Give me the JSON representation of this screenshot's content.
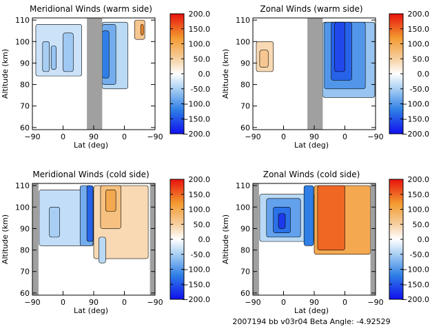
{
  "footer": "2007194 bb v03r04   Beta Angle: -4.92529",
  "gap_color": "#a0a0a0",
  "colorbar": {
    "ticks": [
      200.0,
      150.0,
      100.0,
      50.0,
      0.0,
      -50.0,
      -100.0,
      -150.0,
      -200.0
    ],
    "tick_labels": [
      "200.0",
      "150.0",
      "100.0",
      "50.0",
      "0.0",
      "-50.0",
      "−100.0",
      "−150.0",
      "−200.0"
    ],
    "range": [
      -200,
      200
    ],
    "stops": [
      {
        "value": -200,
        "color": "#1010ee"
      },
      {
        "value": -120,
        "color": "#2f7fe6"
      },
      {
        "value": -50,
        "color": "#a8cff3"
      },
      {
        "value": 0,
        "color": "#ffffff"
      },
      {
        "value": 50,
        "color": "#f6cfa0"
      },
      {
        "value": 120,
        "color": "#f39a30"
      },
      {
        "value": 200,
        "color": "#e8120e"
      }
    ]
  },
  "chart_data": [
    {
      "type": "heatmap",
      "title": "Meridional Winds (warm side)",
      "xlabel": "Lat (deg)",
      "ylabel": "Altitude (km)",
      "x_tick_labels": [
        "−90",
        "0",
        "90",
        "0",
        "−90"
      ],
      "xlim": [
        0,
        360
      ],
      "ylim": [
        59,
        111
      ],
      "y_ticks": [
        60,
        70,
        80,
        90,
        100,
        110
      ],
      "gaps": [
        [
          160,
          205
        ]
      ],
      "data_extent": [
        [
          10,
          255,
          84,
          109
        ]
      ],
      "regions": [
        {
          "x": [
            10,
            145
          ],
          "y": [
            84,
            108
          ],
          "value": -30
        },
        {
          "x": [
            30,
            50
          ],
          "y": [
            86,
            100
          ],
          "value": -50
        },
        {
          "x": [
            55,
            70
          ],
          "y": [
            87,
            98
          ],
          "value": -60
        },
        {
          "x": [
            90,
            120
          ],
          "y": [
            86,
            104
          ],
          "value": -55
        },
        {
          "x": [
            205,
            280
          ],
          "y": [
            78,
            109
          ],
          "value": -40
        },
        {
          "x": [
            205,
            245
          ],
          "y": [
            80,
            108
          ],
          "value": -80
        },
        {
          "x": [
            205,
            225
          ],
          "y": [
            83,
            105
          ],
          "value": -120
        },
        {
          "x": [
            300,
            330
          ],
          "y": [
            101,
            110
          ],
          "value": 60
        },
        {
          "x": [
            318,
            326
          ],
          "y": [
            103,
            108
          ],
          "value": 130
        }
      ]
    },
    {
      "type": "heatmap",
      "title": "Zonal Winds (warm side)",
      "xlabel": "Lat (deg)",
      "ylabel": "Altitude (km)",
      "x_tick_labels": [
        "−90",
        "0",
        "90",
        "0",
        "−90"
      ],
      "xlim": [
        0,
        360
      ],
      "ylim": [
        59,
        111
      ],
      "y_ticks": [
        60,
        70,
        80,
        90,
        100,
        110
      ],
      "gaps": [
        [
          160,
          205
        ]
      ],
      "data_extent": [
        [
          10,
          255,
          86,
          106
        ]
      ],
      "regions": [
        {
          "x": [
            10,
            60
          ],
          "y": [
            86,
            100
          ],
          "value": 40
        },
        {
          "x": [
            20,
            45
          ],
          "y": [
            88,
            96
          ],
          "value": 60
        },
        {
          "x": [
            205,
            358
          ],
          "y": [
            74,
            109
          ],
          "value": -60
        },
        {
          "x": [
            210,
            330
          ],
          "y": [
            78,
            109
          ],
          "value": -100
        },
        {
          "x": [
            230,
            290
          ],
          "y": [
            82,
            109
          ],
          "value": -140
        },
        {
          "x": [
            240,
            270
          ],
          "y": [
            86,
            109
          ],
          "value": -160
        }
      ]
    },
    {
      "type": "heatmap",
      "title": "Meridional Winds (cold side)",
      "xlabel": "Lat (deg)",
      "ylabel": "Altitude (km)",
      "x_tick_labels": [
        "−90",
        "0",
        "90",
        "0",
        "−90"
      ],
      "xlim": [
        0,
        360
      ],
      "ylim": [
        59,
        111
      ],
      "y_ticks": [
        60,
        70,
        80,
        90,
        100,
        110
      ],
      "gaps": [
        [
          0,
          18
        ],
        [
          345,
          360
        ]
      ],
      "data_extent": [
        [
          20,
          340,
          74,
          110
        ]
      ],
      "regions": [
        {
          "x": [
            20,
            180
          ],
          "y": [
            82,
            108
          ],
          "value": -35
        },
        {
          "x": [
            50,
            80
          ],
          "y": [
            86,
            100
          ],
          "value": -50
        },
        {
          "x": [
            140,
            178
          ],
          "y": [
            82,
            110
          ],
          "value": -80
        },
        {
          "x": [
            160,
            178
          ],
          "y": [
            84,
            110
          ],
          "value": -140
        },
        {
          "x": [
            180,
            340
          ],
          "y": [
            76,
            110
          ],
          "value": 40
        },
        {
          "x": [
            200,
            260
          ],
          "y": [
            90,
            110
          ],
          "value": 70
        },
        {
          "x": [
            215,
            245
          ],
          "y": [
            98,
            108
          ],
          "value": 100
        },
        {
          "x": [
            195,
            215
          ],
          "y": [
            74,
            86
          ],
          "value": -40
        }
      ]
    },
    {
      "type": "heatmap",
      "title": "Zonal Winds (cold side)",
      "xlabel": "Lat (deg)",
      "ylabel": "Altitude (km)",
      "x_tick_labels": [
        "−90",
        "0",
        "90",
        "0",
        "−90"
      ],
      "xlim": [
        0,
        360
      ],
      "ylim": [
        59,
        111
      ],
      "y_ticks": [
        60,
        70,
        80,
        90,
        100,
        110
      ],
      "gaps": [
        [
          0,
          18
        ],
        [
          345,
          360
        ]
      ],
      "data_extent": [
        [
          20,
          340,
          76,
          110
        ]
      ],
      "regions": [
        {
          "x": [
            20,
            180
          ],
          "y": [
            84,
            106
          ],
          "value": -40
        },
        {
          "x": [
            40,
            140
          ],
          "y": [
            86,
            104
          ],
          "value": -90
        },
        {
          "x": [
            60,
            110
          ],
          "y": [
            88,
            100
          ],
          "value": -130
        },
        {
          "x": [
            75,
            95
          ],
          "y": [
            90,
            97
          ],
          "value": -170
        },
        {
          "x": [
            150,
            178
          ],
          "y": [
            82,
            110
          ],
          "value": -120
        },
        {
          "x": [
            180,
            345
          ],
          "y": [
            78,
            110
          ],
          "value": 100
        },
        {
          "x": [
            190,
            270
          ],
          "y": [
            80,
            110
          ],
          "value": 150
        }
      ]
    }
  ]
}
